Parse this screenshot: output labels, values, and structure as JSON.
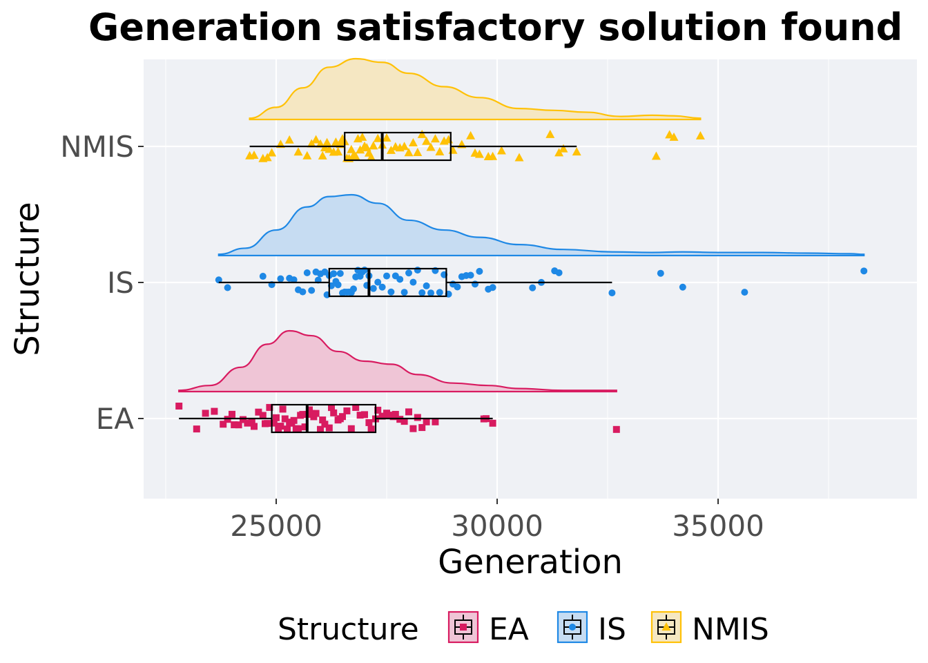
{
  "chart_data": {
    "type": "raincloud",
    "title": "Generation satisfactory solution found",
    "xlabel": "Generation",
    "ylabel": "Structure",
    "xlim": [
      22000,
      39500
    ],
    "xticks": [
      25000,
      30000,
      35000
    ],
    "xtick_labels": [
      "25000",
      "30000",
      "35000"
    ],
    "categories": [
      "EA",
      "IS",
      "NMIS"
    ],
    "legend": {
      "title": "Structure",
      "position": "bottom",
      "entries": [
        "EA",
        "IS",
        "NMIS"
      ]
    },
    "grid": true,
    "series": [
      {
        "name": "EA",
        "color": "#d81b60",
        "fill": "#efc5d6",
        "marker": "square",
        "box": {
          "min": 22800,
          "q1": 24900,
          "median": 25700,
          "q3": 27250,
          "max": 29900
        },
        "density": [
          [
            22800,
            0.02
          ],
          [
            23500,
            0.1
          ],
          [
            24200,
            0.4
          ],
          [
            24800,
            0.78
          ],
          [
            25300,
            1.0
          ],
          [
            25800,
            0.92
          ],
          [
            26400,
            0.66
          ],
          [
            27000,
            0.5
          ],
          [
            27600,
            0.45
          ],
          [
            28200,
            0.28
          ],
          [
            29000,
            0.14
          ],
          [
            29800,
            0.1
          ],
          [
            30500,
            0.05
          ],
          [
            31500,
            0.02
          ],
          [
            32700,
            0.02
          ]
        ],
        "points": [
          22800,
          23200,
          23400,
          23600,
          23800,
          23900,
          24000,
          24050,
          24150,
          24250,
          24350,
          24450,
          24500,
          24600,
          24700,
          24750,
          24800,
          24850,
          24950,
          25000,
          25050,
          25100,
          25150,
          25200,
          25250,
          25300,
          25350,
          25400,
          25450,
          25500,
          25550,
          25600,
          25650,
          25700,
          25750,
          25800,
          25850,
          25900,
          26000,
          26050,
          26100,
          26200,
          26250,
          26300,
          26400,
          26450,
          26500,
          26600,
          26700,
          26800,
          26900,
          27000,
          27100,
          27150,
          27250,
          27300,
          27400,
          27500,
          27550,
          27650,
          27700,
          27800,
          27900,
          28000,
          28100,
          28200,
          28300,
          28400,
          28600,
          29700,
          29750,
          29900,
          32700
        ]
      },
      {
        "name": "IS",
        "color": "#1e88e5",
        "fill": "#c6dcf2",
        "marker": "circle",
        "box": {
          "min": 23700,
          "q1": 26200,
          "median": 27100,
          "q3": 28850,
          "max": 32600
        },
        "density": [
          [
            23700,
            0.02
          ],
          [
            24300,
            0.12
          ],
          [
            25000,
            0.42
          ],
          [
            25700,
            0.8
          ],
          [
            26200,
            0.97
          ],
          [
            26700,
            1.0
          ],
          [
            27300,
            0.86
          ],
          [
            28000,
            0.58
          ],
          [
            28800,
            0.42
          ],
          [
            29600,
            0.3
          ],
          [
            30500,
            0.18
          ],
          [
            31500,
            0.1
          ],
          [
            32600,
            0.06
          ],
          [
            33500,
            0.05
          ],
          [
            34200,
            0.06
          ],
          [
            35000,
            0.05
          ],
          [
            36000,
            0.05
          ],
          [
            37000,
            0.04
          ],
          [
            38000,
            0.03
          ],
          [
            38300,
            0.02
          ]
        ],
        "points": [
          23700,
          23900,
          24700,
          24900,
          25100,
          25300,
          25400,
          25500,
          25600,
          25700,
          25800,
          25900,
          25950,
          26000,
          26100,
          26150,
          26200,
          26250,
          26300,
          26350,
          26400,
          26450,
          26500,
          26550,
          26600,
          26650,
          26700,
          26750,
          26800,
          26850,
          26900,
          26950,
          27000,
          27050,
          27100,
          27200,
          27300,
          27400,
          27500,
          27600,
          27700,
          27800,
          27900,
          28000,
          28100,
          28200,
          28300,
          28400,
          28500,
          28600,
          28700,
          28800,
          28900,
          29000,
          29100,
          29200,
          29300,
          29400,
          29500,
          29600,
          29800,
          29900,
          30800,
          31000,
          31300,
          31400,
          32600,
          33700,
          34200,
          35600,
          38300
        ]
      },
      {
        "name": "NMIS",
        "color": "#ffc107",
        "fill": "#f5e7c2",
        "marker": "triangle",
        "box": {
          "min": 24400,
          "q1": 26550,
          "median": 27400,
          "q3": 28950,
          "max": 31800
        },
        "density": [
          [
            24400,
            0.02
          ],
          [
            25000,
            0.2
          ],
          [
            25600,
            0.52
          ],
          [
            26200,
            0.86
          ],
          [
            26800,
            1.0
          ],
          [
            27400,
            0.94
          ],
          [
            28000,
            0.76
          ],
          [
            28800,
            0.54
          ],
          [
            29600,
            0.36
          ],
          [
            30500,
            0.18
          ],
          [
            31300,
            0.15
          ],
          [
            32000,
            0.12
          ],
          [
            32800,
            0.05
          ],
          [
            33500,
            0.07
          ],
          [
            34000,
            0.06
          ],
          [
            34600,
            0.02
          ]
        ],
        "points": [
          24400,
          24500,
          24700,
          24800,
          24900,
          25100,
          25300,
          25500,
          25700,
          25800,
          25900,
          26000,
          26050,
          26100,
          26150,
          26200,
          26300,
          26350,
          26400,
          26450,
          26500,
          26550,
          26600,
          26650,
          26700,
          26750,
          26800,
          26850,
          26900,
          26950,
          27000,
          27050,
          27100,
          27150,
          27200,
          27300,
          27400,
          27500,
          27600,
          27700,
          27800,
          27900,
          28000,
          28100,
          28200,
          28300,
          28400,
          28500,
          28600,
          28700,
          28800,
          28900,
          29000,
          29200,
          29400,
          29500,
          29600,
          29800,
          29900,
          30100,
          30500,
          31200,
          31400,
          31500,
          31800,
          33600,
          33900,
          34000,
          34600
        ]
      }
    ]
  }
}
